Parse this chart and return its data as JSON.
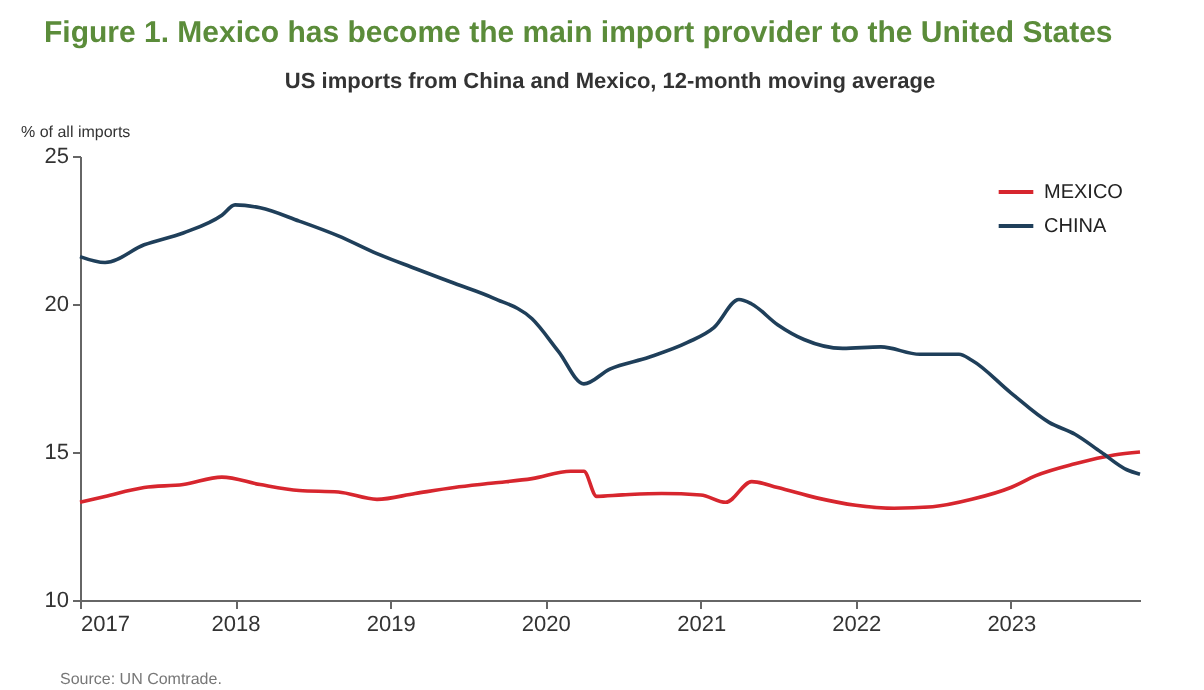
{
  "chart_data": {
    "type": "line",
    "title": "Figure 1. Mexico has become the main import provider to the United States",
    "subtitle": "US imports from China and Mexico, 12-month moving average",
    "ylabel": "% of all imports",
    "annotations": [
      "Source: UN Comtrade."
    ],
    "xlim": [
      "2017-01",
      "2023-11"
    ],
    "xticks": [
      {
        "value": "2017-01",
        "label": "2017"
      },
      {
        "value": "2018-01",
        "label": "2018"
      },
      {
        "value": "2019-01",
        "label": "2019"
      },
      {
        "value": "2020-01",
        "label": "2020"
      },
      {
        "value": "2021-01",
        "label": "2021"
      },
      {
        "value": "2022-01",
        "label": "2022"
      },
      {
        "value": "2023-01",
        "label": "2023"
      }
    ],
    "ylim": [
      10,
      25
    ],
    "yticks": [
      10,
      15,
      20,
      25
    ],
    "grid": false,
    "legend": "top right",
    "line_style": "solid",
    "marker": "none",
    "series": [
      {
        "name": "MEXICO",
        "color": "#d7262e",
        "x": [
          "2017-01",
          "2017-03",
          "2017-06",
          "2017-09",
          "2017-12",
          "2018-03",
          "2018-06",
          "2018-09",
          "2018-12",
          "2019-03",
          "2019-06",
          "2019-09",
          "2019-12",
          "2020-03",
          "2020-04",
          "2020-05",
          "2020-07",
          "2020-10",
          "2021-01",
          "2021-03",
          "2021-05",
          "2021-07",
          "2021-10",
          "2022-01",
          "2022-04",
          "2022-07",
          "2022-10",
          "2023-01",
          "2023-03",
          "2023-06",
          "2023-09",
          "2023-11"
        ],
        "values": [
          13.3,
          13.5,
          13.8,
          13.9,
          14.15,
          13.9,
          13.7,
          13.65,
          13.4,
          13.6,
          13.8,
          13.95,
          14.1,
          14.35,
          14.35,
          13.5,
          13.55,
          13.6,
          13.55,
          13.3,
          14.0,
          13.8,
          13.45,
          13.2,
          13.1,
          13.15,
          13.4,
          13.8,
          14.2,
          14.6,
          14.9,
          15.0
        ]
      },
      {
        "name": "CHINA",
        "color": "#1f3f5a",
        "x": [
          "2017-01",
          "2017-03",
          "2017-06",
          "2017-09",
          "2017-12",
          "2018-01",
          "2018-03",
          "2018-06",
          "2018-09",
          "2018-12",
          "2019-03",
          "2019-06",
          "2019-09",
          "2019-12",
          "2020-02",
          "2020-04",
          "2020-06",
          "2020-09",
          "2020-12",
          "2021-02",
          "2021-04",
          "2021-05",
          "2021-07",
          "2021-09",
          "2021-12",
          "2022-03",
          "2022-06",
          "2022-09",
          "2022-10",
          "2023-01",
          "2023-04",
          "2023-06",
          "2023-08",
          "2023-10",
          "2023-11"
        ],
        "values": [
          21.6,
          21.4,
          22.0,
          22.4,
          23.0,
          23.35,
          23.25,
          22.8,
          22.3,
          21.7,
          21.2,
          20.7,
          20.2,
          19.5,
          18.4,
          17.3,
          17.8,
          18.2,
          18.7,
          19.2,
          20.15,
          20.0,
          19.3,
          18.8,
          18.5,
          18.55,
          18.3,
          18.3,
          18.1,
          17.0,
          16.0,
          15.6,
          15.0,
          14.4,
          14.25
        ]
      }
    ]
  }
}
